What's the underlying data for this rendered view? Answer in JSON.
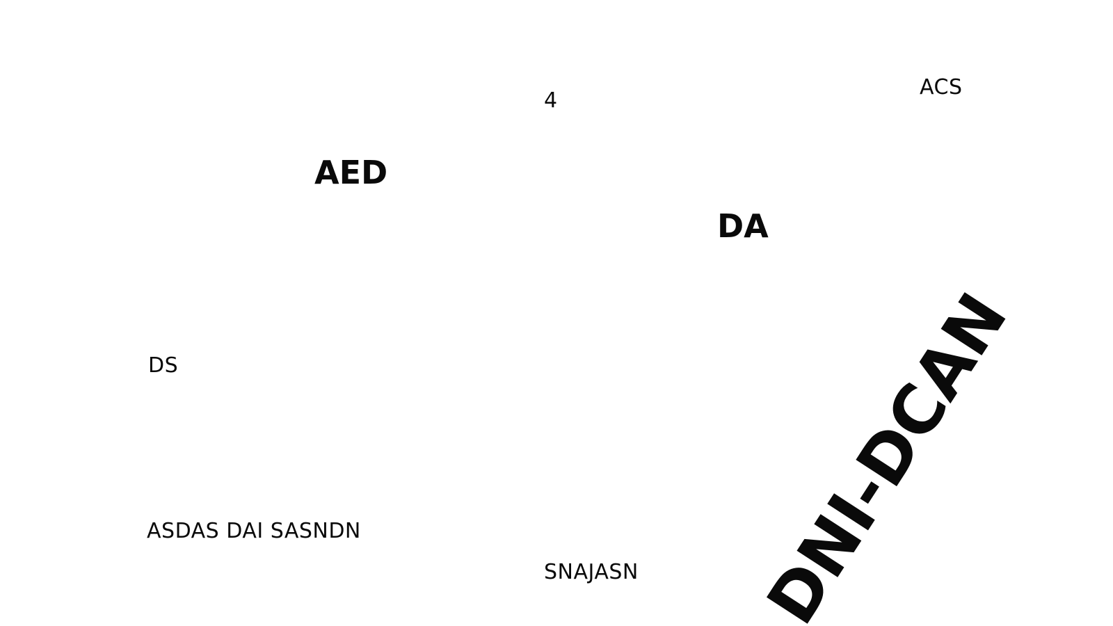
{
  "labels": {
    "four": "4",
    "acs": "ACS",
    "aed": "AED",
    "da": "DA",
    "ds": "DS",
    "asdas": "ASDAS DAI SASNDN",
    "snajasn": "SNAJASN",
    "dni_dcan": "DNI-DCAN"
  },
  "colors": {
    "background": "#ffffff",
    "text": "#0a0a0a"
  }
}
